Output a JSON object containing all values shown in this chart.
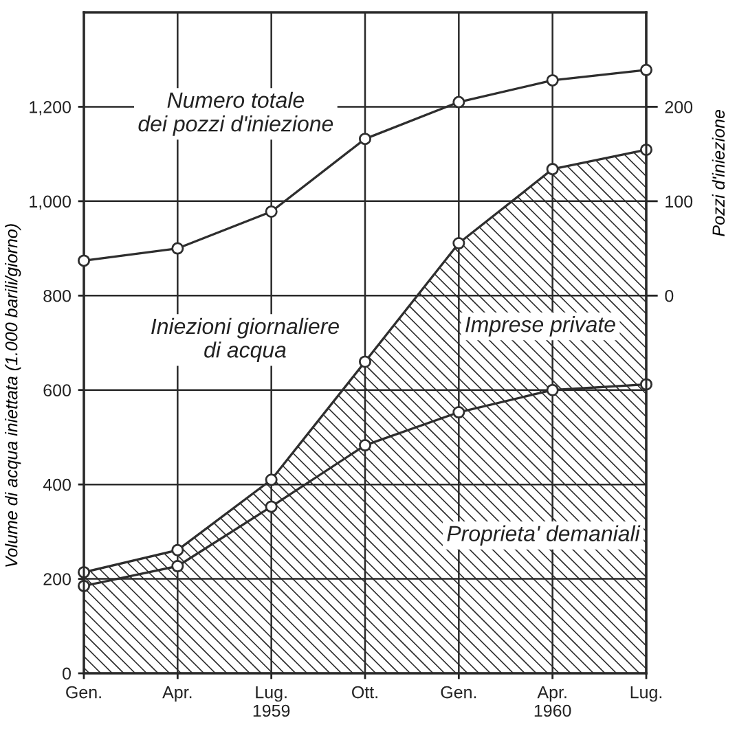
{
  "chart_data": {
    "type": "area",
    "stacked": true,
    "ylabel": "Volume di acqua iniettata (1.000 barili/giorno)",
    "y2label": "Pozzi d'iniezione",
    "categories": [
      "Gen.",
      "Apr.",
      "Lug.\n1959",
      "Ott.",
      "Gen.",
      "Apr.\n1960",
      "Lug."
    ],
    "series": [
      {
        "name": "Proprieta' demaniali",
        "color": "#2e2e2e",
        "values": [
          185,
          227,
          353,
          483,
          553,
          600,
          612
        ]
      },
      {
        "name": "Imprese private",
        "color": "#2e2e2e",
        "values": [
          29,
          34,
          57,
          177,
          358,
          468,
          497
        ]
      },
      {
        "name": "Numero totale\ndei pozzi d'iniezione",
        "type": "line",
        "axis": "y2",
        "color": "#2e2e2e",
        "values": [
          37,
          50,
          89,
          166,
          205,
          228,
          239
        ]
      }
    ],
    "ylim": [
      0,
      1400
    ],
    "yticks": [
      0,
      200,
      400,
      600,
      800,
      {
        "value": 1000,
        "label": "1,000"
      },
      {
        "value": 1200,
        "label": "1,200"
      }
    ],
    "y2lim": [
      -400,
      300
    ],
    "y2ticks": [
      0,
      100,
      200
    ],
    "annotations": [
      "Iniezioni giornaliere\ndi acqua"
    ],
    "grid": true,
    "marker": "circle",
    "line_style": "solid"
  }
}
